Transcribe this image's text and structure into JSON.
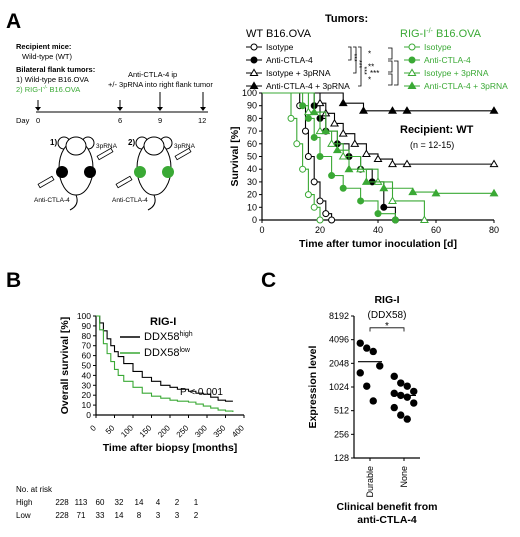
{
  "panel_letters": [
    "A",
    "B",
    "C"
  ],
  "schematic": {
    "recipient_title": "Recipient mice:",
    "recipient_value": "Wild-type (WT)",
    "flank_title": "Bilateral flank tumors:",
    "flank_line1": "1) Wild-type B16.OVA",
    "flank_line2": "2) RIG-I",
    "flank_line2_sup": "-/-",
    "flank_line2_tail": " B16.OVA",
    "treat_line1": "Anti-CTLA-4 ip",
    "treat_line2": "+/- 3pRNA into right flank tumor",
    "day_label": "Day",
    "days": [
      "0",
      "6",
      "9",
      "12"
    ],
    "mouse1_label": "1)",
    "mouse2_label": "2)",
    "injection_3prna": "3pRNA",
    "injection_ctla4": "Anti-CTLA-4",
    "colors": {
      "wt": "#000000",
      "ko": "#3aa935"
    }
  },
  "panel_a": {
    "tumors_title": "Tumors:",
    "wt_header": "WT B16.OVA",
    "ko_header_pre": "RIG-I",
    "ko_header_sup": "-/-",
    "ko_header_post": " B16.OVA",
    "legend_wt": [
      "Isotype",
      "Anti-CTLA-4",
      "Isotype + 3pRNA",
      "Anti-CTLA-4 + 3pRNA"
    ],
    "legend_ko": [
      "Isotype",
      "Anti-CTLA-4",
      "Isotype + 3pRNA",
      "Anti-CTLA-4 + 3pRNA"
    ],
    "sig_left": [
      "***",
      "***",
      "***"
    ],
    "sig_right": [
      "*",
      "**",
      "*",
      "***"
    ],
    "recipient_label": "Recipient: WT",
    "n_label": "(n = 12-15)"
  },
  "panel_c": {
    "title": "RIG-I",
    "subtitle": "(DDX58)",
    "sig": "*",
    "xlabel_line1": "Clinical benefit from",
    "xlabel_line2": "anti-CTLA-4"
  },
  "risk_table": {
    "title": "No. at risk",
    "rows": [
      {
        "label": "High",
        "values": [
          "228",
          "113",
          "60",
          "32",
          "14",
          "4",
          "2",
          "1"
        ]
      },
      {
        "label": "Low",
        "values": [
          "228",
          "71",
          "33",
          "14",
          "8",
          "3",
          "3",
          "2"
        ]
      }
    ]
  },
  "chart_data": [
    {
      "type": "line",
      "panel": "A",
      "xlabel": "Time after tumor inoculation [d]",
      "ylabel": "Survival [%]",
      "xlim": [
        0,
        80
      ],
      "ylim": [
        0,
        100
      ],
      "xticks": [
        0,
        20,
        40,
        60,
        80
      ],
      "yticks": [
        0,
        10,
        20,
        30,
        40,
        50,
        60,
        70,
        80,
        90,
        100
      ],
      "series": [
        {
          "name": "Isotype",
          "group": "WT B16.OVA",
          "color": "#000000",
          "marker": "circle-open",
          "x": [
            0,
            13,
            15,
            16,
            18,
            20,
            22,
            24
          ],
          "y": [
            100,
            90,
            70,
            50,
            30,
            15,
            5,
            0
          ]
        },
        {
          "name": "Anti-CTLA-4",
          "group": "WT B16.OVA",
          "color": "#000000",
          "marker": "circle-filled",
          "x": [
            0,
            18,
            20,
            22,
            26,
            30,
            34,
            38,
            42,
            46
          ],
          "y": [
            100,
            90,
            80,
            70,
            60,
            50,
            40,
            30,
            10,
            0
          ]
        },
        {
          "name": "Isotype + 3pRNA",
          "group": "WT B16.OVA",
          "color": "#000000",
          "marker": "triangle-open",
          "x": [
            0,
            20,
            22,
            25,
            28,
            32,
            36,
            40,
            45,
            50,
            80
          ],
          "y": [
            100,
            92,
            84,
            76,
            68,
            60,
            52,
            48,
            44,
            44,
            44
          ]
        },
        {
          "name": "Anti-CTLA-4 + 3pRNA",
          "group": "WT B16.OVA",
          "color": "#000000",
          "marker": "triangle-filled",
          "x": [
            0,
            28,
            35,
            45,
            50,
            80
          ],
          "y": [
            100,
            92,
            86,
            86,
            86,
            86
          ]
        },
        {
          "name": "Isotype",
          "group": "RIG-I-/- B16.OVA",
          "color": "#3aa935",
          "marker": "circle-open",
          "x": [
            0,
            10,
            12,
            14,
            16,
            18,
            20
          ],
          "y": [
            100,
            80,
            60,
            40,
            20,
            10,
            0
          ]
        },
        {
          "name": "Anti-CTLA-4",
          "group": "RIG-I-/- B16.OVA",
          "color": "#3aa935",
          "marker": "circle-filled",
          "x": [
            0,
            14,
            16,
            18,
            20,
            24,
            28,
            34,
            40,
            46
          ],
          "y": [
            100,
            90,
            80,
            65,
            50,
            35,
            25,
            15,
            5,
            0
          ]
        },
        {
          "name": "Isotype + 3pRNA",
          "group": "RIG-I-/- B16.OVA",
          "color": "#3aa935",
          "marker": "triangle-open",
          "x": [
            0,
            16,
            20,
            24,
            28,
            34,
            40,
            45,
            56
          ],
          "y": [
            100,
            85,
            70,
            60,
            50,
            40,
            30,
            15,
            0
          ]
        },
        {
          "name": "Anti-CTLA-4 + 3pRNA",
          "group": "RIG-I-/- B16.OVA",
          "color": "#3aa935",
          "marker": "triangle-filled",
          "x": [
            0,
            18,
            22,
            26,
            30,
            36,
            42,
            52,
            60,
            80
          ],
          "y": [
            100,
            85,
            70,
            55,
            40,
            30,
            25,
            22,
            21,
            21
          ]
        }
      ]
    },
    {
      "type": "line",
      "panel": "B",
      "title": "RIG-I",
      "xlabel": "Time after biopsy [months]",
      "ylabel": "Overall survival [%]",
      "xlim": [
        0,
        400
      ],
      "ylim": [
        0,
        100
      ],
      "xticks": [
        0,
        50,
        100,
        150,
        200,
        250,
        300,
        350,
        400
      ],
      "yticks": [
        0,
        10,
        20,
        30,
        40,
        50,
        60,
        70,
        80,
        90,
        100
      ],
      "annotation": "P < 0.001",
      "series": [
        {
          "name": "DDX58",
          "name_sup": "high",
          "color": "#000000",
          "x": [
            0,
            10,
            20,
            30,
            40,
            50,
            60,
            75,
            100,
            125,
            150,
            175,
            200,
            220,
            250,
            270,
            290,
            310,
            330,
            350,
            370
          ],
          "y": [
            100,
            93,
            85,
            77,
            70,
            64,
            59,
            52,
            44,
            38,
            34,
            30,
            28,
            26,
            24,
            22,
            21,
            18,
            15,
            14,
            14
          ]
        },
        {
          "name": "DDX58",
          "name_sup": "low",
          "color": "#3aa935",
          "x": [
            0,
            10,
            20,
            30,
            40,
            50,
            60,
            75,
            100,
            125,
            150,
            175,
            200,
            220,
            250,
            270,
            290,
            310,
            330,
            350,
            370
          ],
          "y": [
            100,
            86,
            72,
            62,
            54,
            46,
            40,
            34,
            28,
            22,
            19,
            17,
            15,
            14,
            13,
            11,
            9,
            7,
            5,
            4,
            3
          ]
        }
      ]
    },
    {
      "type": "scatter",
      "panel": "C",
      "title": "RIG-I",
      "subtitle": "(DDX58)",
      "ylabel": "Expression level",
      "yscale": "log2",
      "ylim": [
        128,
        8192
      ],
      "yticks": [
        128,
        256,
        512,
        1024,
        2048,
        4096,
        8192
      ],
      "categories": [
        "Durable",
        "None"
      ],
      "series": [
        {
          "name": "Durable",
          "mean": 2150,
          "values": [
            3700,
            3200,
            2900,
            1900,
            1550,
            1050,
            680
          ]
        },
        {
          "name": "None",
          "mean": 800,
          "values": [
            1400,
            1150,
            1050,
            900,
            850,
            800,
            760,
            640,
            560,
            450,
            400
          ]
        }
      ]
    }
  ]
}
